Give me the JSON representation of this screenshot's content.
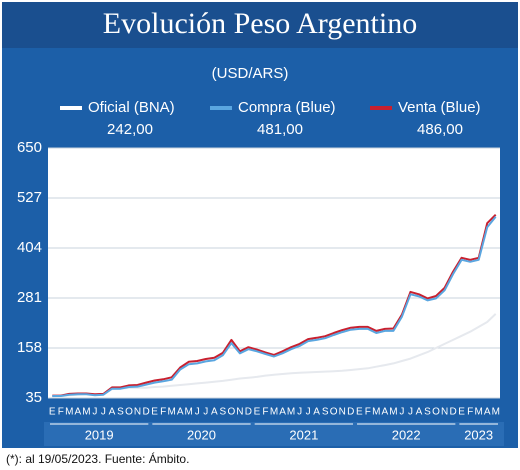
{
  "chart_data": {
    "type": "line",
    "title": "Evolución Peso Argentino",
    "subtitle": "(USD/ARS)",
    "footnote": "(*): al 19/05/2023. Fuente: Ámbito.",
    "categories": [
      "E",
      "F",
      "M",
      "A",
      "M",
      "J",
      "J",
      "A",
      "S",
      "O",
      "N",
      "D",
      "E",
      "F",
      "M",
      "A",
      "M",
      "J",
      "J",
      "A",
      "S",
      "O",
      "N",
      "D",
      "E",
      "F",
      "M",
      "A",
      "M",
      "J",
      "J",
      "A",
      "S",
      "O",
      "N",
      "D",
      "E",
      "F",
      "M",
      "A",
      "M",
      "J",
      "J",
      "A",
      "S",
      "O",
      "N",
      "D",
      "E",
      "F",
      "M",
      "A",
      "M"
    ],
    "years": [
      "2019",
      "2020",
      "2021",
      "2022",
      "2023"
    ],
    "series": [
      {
        "name": "Oficial (BNA)",
        "color": "#e6e9ee",
        "values": [
          39,
          40,
          42,
          43,
          45,
          43,
          44,
          57,
          58,
          60,
          60,
          60,
          62,
          63,
          65,
          67,
          69,
          71,
          73,
          75,
          77,
          80,
          83,
          85,
          87,
          90,
          92,
          94,
          96,
          97,
          98,
          99,
          100,
          101,
          102,
          104,
          106,
          108,
          112,
          116,
          120,
          126,
          132,
          140,
          148,
          158,
          168,
          178,
          188,
          198,
          210,
          222,
          242
        ],
        "value_labels": [
          null,
          null,
          null,
          null,
          null,
          null,
          null,
          null,
          null,
          null,
          null,
          null,
          null,
          null,
          null,
          null,
          null,
          null,
          null,
          null,
          null,
          null,
          null,
          null,
          null,
          null,
          null,
          null,
          null,
          null,
          null,
          null,
          null,
          null,
          null,
          null,
          null,
          null,
          null,
          null,
          null,
          null,
          null,
          null,
          null,
          null,
          null,
          null,
          null,
          null,
          null,
          null,
          "242,00"
        ]
      },
      {
        "name": "Venta (Blue)",
        "color": "#c8202f",
        "values": [
          41,
          41,
          45,
          46,
          46,
          44,
          45,
          61,
          61,
          66,
          67,
          73,
          78,
          81,
          86,
          110,
          124,
          126,
          131,
          134,
          146,
          178,
          150,
          160,
          154,
          147,
          141,
          150,
          160,
          168,
          180,
          183,
          187,
          195,
          202,
          208,
          210,
          210,
          200,
          205,
          206,
          240,
          296,
          290,
          280,
          286,
          306,
          346,
          380,
          375,
          380,
          465,
          486
        ],
        "value_labels": [
          null,
          null,
          null,
          null,
          null,
          null,
          null,
          null,
          null,
          null,
          null,
          null,
          null,
          null,
          null,
          null,
          null,
          null,
          null,
          null,
          null,
          null,
          null,
          null,
          null,
          null,
          null,
          null,
          null,
          null,
          null,
          null,
          null,
          null,
          null,
          null,
          null,
          null,
          null,
          null,
          null,
          null,
          null,
          null,
          null,
          null,
          null,
          null,
          null,
          null,
          null,
          null,
          "486,00"
        ]
      },
      {
        "name": "Compra (Blue)",
        "color": "#5aa6e0",
        "values": [
          40,
          40,
          43,
          44,
          44,
          42,
          43,
          58,
          58,
          62,
          63,
          68,
          73,
          76,
          80,
          105,
          118,
          120,
          125,
          128,
          140,
          170,
          145,
          155,
          150,
          143,
          137,
          145,
          155,
          163,
          175,
          178,
          182,
          190,
          197,
          203,
          205,
          205,
          195,
          200,
          200,
          235,
          290,
          285,
          275,
          280,
          300,
          340,
          375,
          370,
          375,
          455,
          481
        ],
        "value_labels": [
          null,
          null,
          null,
          null,
          null,
          null,
          null,
          null,
          null,
          null,
          null,
          null,
          null,
          null,
          null,
          null,
          null,
          null,
          null,
          null,
          null,
          null,
          null,
          null,
          null,
          null,
          null,
          null,
          null,
          null,
          null,
          null,
          null,
          null,
          null,
          null,
          null,
          null,
          null,
          null,
          null,
          null,
          null,
          null,
          null,
          null,
          null,
          null,
          null,
          null,
          null,
          null,
          "481,00"
        ]
      }
    ],
    "legend_order": [
      0,
      2,
      1
    ],
    "ylim": [
      35,
      650
    ],
    "yticks": [
      35,
      158,
      281,
      404,
      527,
      650
    ],
    "grid": true
  }
}
